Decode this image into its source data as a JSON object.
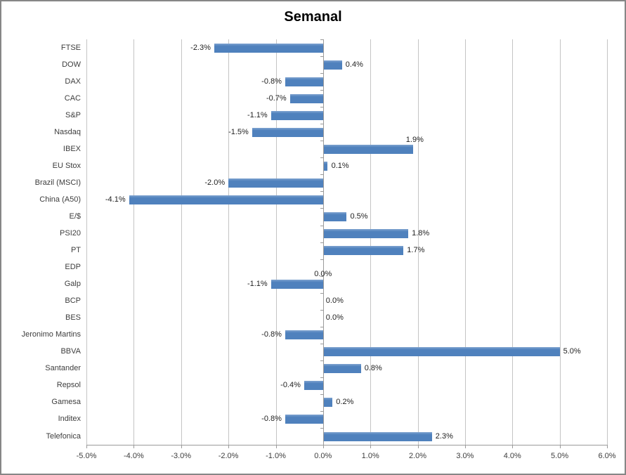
{
  "chart_data": {
    "type": "bar",
    "orientation": "horizontal",
    "title": "Semanal",
    "categories": [
      "FTSE",
      "DOW",
      "DAX",
      "CAC",
      "S&P",
      "Nasdaq",
      "IBEX",
      "EU Stox",
      "Brazil (MSCI)",
      "China (A50)",
      "E/$",
      "PSI20",
      "PT",
      "EDP",
      "Galp",
      "BCP",
      "BES",
      "Jeronimo Martins",
      "BBVA",
      "Santander",
      "Repsol",
      "Gamesa",
      "Inditex",
      "Telefonica"
    ],
    "values": [
      -2.3,
      0.4,
      -0.8,
      -0.7,
      -1.1,
      -1.5,
      1.9,
      0.1,
      -2.0,
      -4.1,
      0.5,
      1.8,
      1.7,
      0.0,
      -1.1,
      0.0,
      0.0,
      -0.8,
      5.0,
      0.8,
      -0.4,
      0.2,
      -0.8,
      2.3
    ],
    "data_labels": [
      "-2.3%",
      "0.4%",
      "-0.8%",
      "-0.7%",
      "-1.1%",
      "-1.5%",
      "1.9%",
      "0.1%",
      "-2.0%",
      "-4.1%",
      "0.5%",
      "1.8%",
      "1.7%",
      "0.0%",
      "-1.1%",
      "0.0%",
      "0.0%",
      "-0.8%",
      "5.0%",
      "0.8%",
      "-0.4%",
      "0.2%",
      "-0.8%",
      "2.3%"
    ],
    "x_tick_labels": [
      "-5.0%",
      "-4.0%",
      "-3.0%",
      "-2.0%",
      "-1.0%",
      "0.0%",
      "1.0%",
      "2.0%",
      "3.0%",
      "4.0%",
      "5.0%",
      "6.0%"
    ],
    "x_tick_values": [
      -5,
      -4,
      -3,
      -2,
      -1,
      0,
      1,
      2,
      3,
      4,
      5,
      6
    ],
    "xlim": [
      -5,
      6
    ],
    "grid": true,
    "legend": false,
    "label_placement_overrides": {
      "6": "above-end",
      "13": "axis-center-low"
    },
    "colors": {
      "bar": "#4F81BD",
      "bar_top_highlight": "#7FA3D0",
      "gridline": "#C4C4C4",
      "axis": "#9A9A9A",
      "category_text": "#3D3D3D",
      "value_text": "#1F1F1F",
      "title_text": "#000000",
      "background": "#FFFFFF",
      "frame_border": "#868686"
    }
  }
}
